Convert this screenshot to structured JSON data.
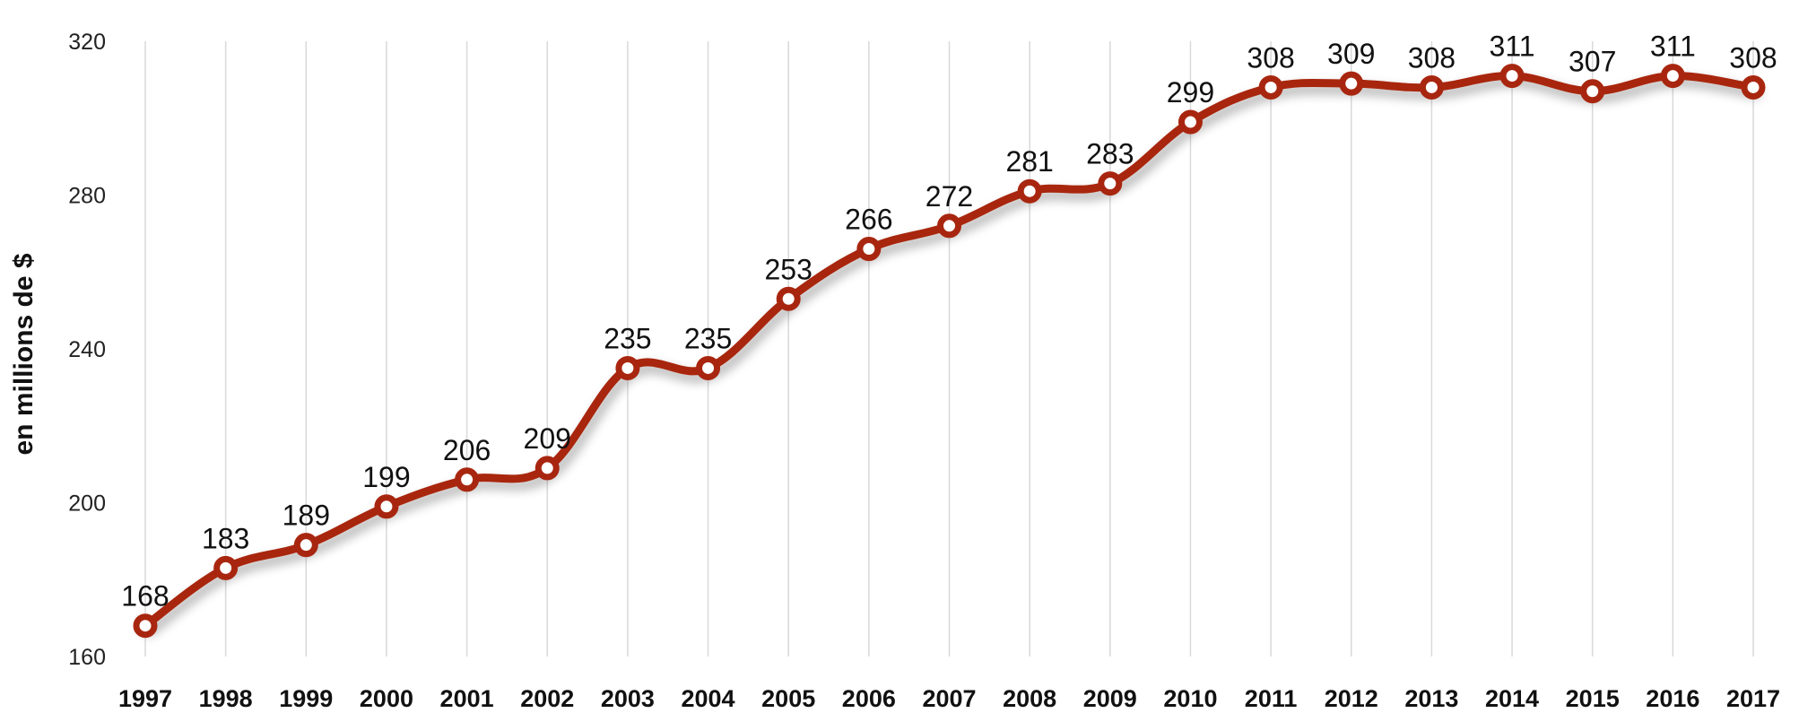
{
  "chart_data": {
    "type": "line",
    "title": "",
    "xlabel": "",
    "ylabel": "en millions de $",
    "ylim": [
      160,
      320
    ],
    "yticks": [
      "160",
      "200",
      "240",
      "280",
      "320"
    ],
    "grid": "vertical",
    "smooth": true,
    "categories": [
      "1997",
      "1998",
      "1999",
      "2000",
      "2001",
      "2002",
      "2003",
      "2004",
      "2005",
      "2006",
      "2007",
      "2008",
      "2009",
      "2010",
      "2011",
      "2012",
      "2013",
      "2014",
      "2015",
      "2016",
      "2017"
    ],
    "series": [
      {
        "values": [
          168,
          183,
          189,
          199,
          206,
          209,
          235,
          235,
          253,
          266,
          272,
          281,
          283,
          299,
          308,
          309,
          308,
          311,
          307,
          311,
          308
        ],
        "color": "#a8260f",
        "marker": "circle"
      }
    ]
  }
}
